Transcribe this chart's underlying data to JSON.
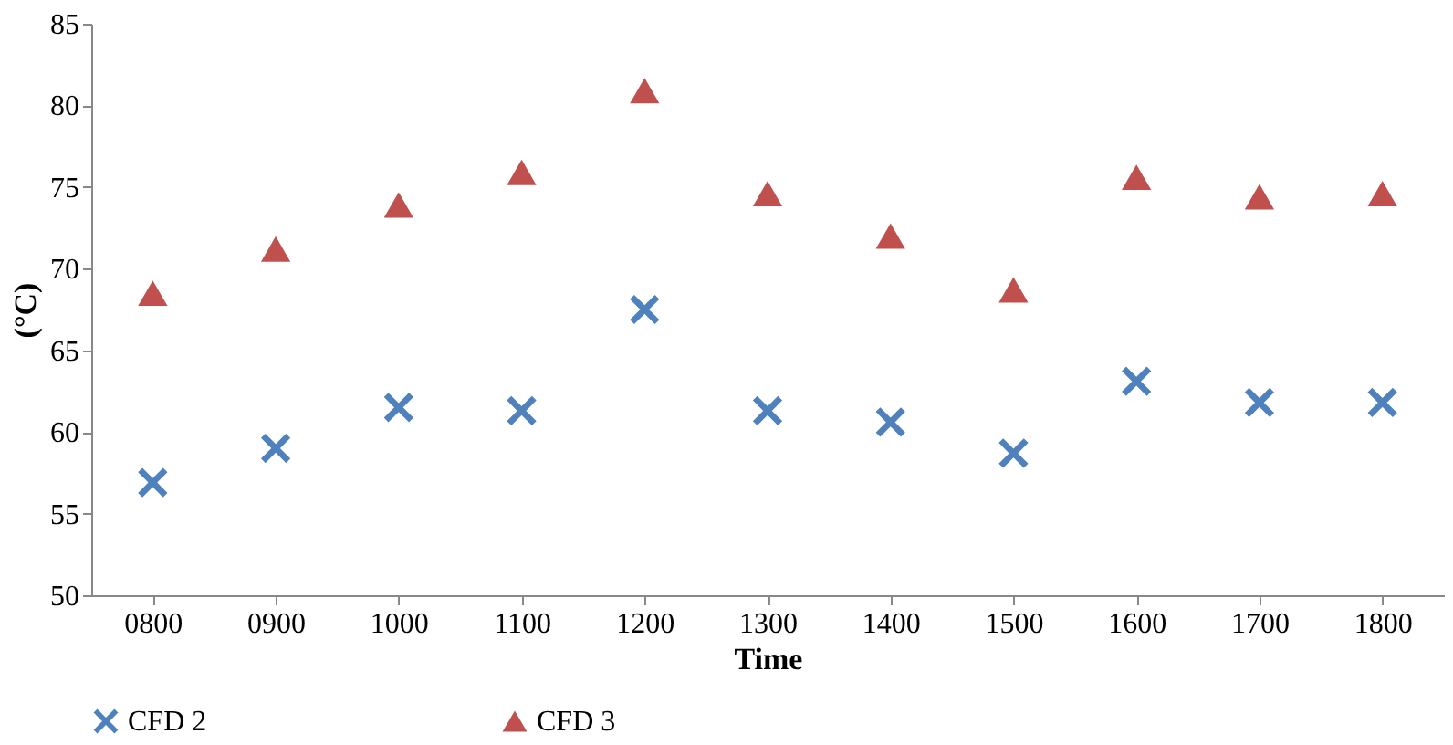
{
  "chart_data": {
    "type": "scatter",
    "xlabel": "Time",
    "ylabel": "(°C)",
    "categories": [
      "0800",
      "0900",
      "1000",
      "1100",
      "1200",
      "1300",
      "1400",
      "1500",
      "1600",
      "1700",
      "1800"
    ],
    "series": [
      {
        "name": "CFD 2",
        "color": "#4f81bd",
        "marker": "cross",
        "values": [
          56.9,
          59.0,
          61.5,
          61.3,
          67.5,
          61.3,
          60.6,
          58.7,
          63.1,
          61.8,
          61.8
        ]
      },
      {
        "name": "CFD 3",
        "color": "#c0504d",
        "marker": "triangle",
        "values": [
          68.5,
          71.2,
          73.9,
          75.9,
          80.9,
          74.6,
          72.0,
          68.7,
          75.6,
          74.4,
          74.6
        ]
      }
    ],
    "ylim": [
      50,
      85
    ],
    "yticks": [
      50,
      55,
      60,
      65,
      70,
      75,
      80,
      85
    ],
    "grid": false,
    "legend": "bottom"
  }
}
